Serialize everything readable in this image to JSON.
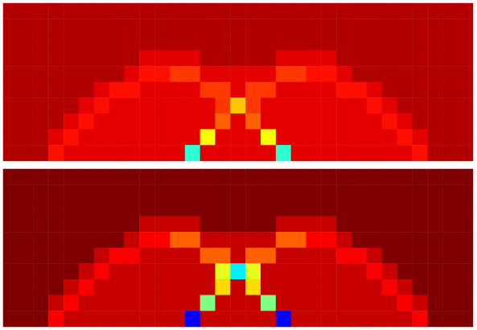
{
  "chart_data": [
    {
      "type": "heatmap",
      "tick_labels": false,
      "zlim": [
        0,
        1
      ],
      "z": [
        [
          0.95,
          0.95,
          0.95,
          0.95,
          0.95,
          0.95,
          0.95,
          0.95,
          0.95,
          0.95,
          0.95,
          0.95,
          0.95,
          0.95,
          0.95,
          0.95,
          0.95,
          0.95,
          0.95,
          0.95,
          0.95,
          0.95,
          0.95,
          0.95,
          0.95,
          0.95,
          0.95,
          0.95,
          0.95,
          0.95,
          0.95
        ],
        [
          0.95,
          0.95,
          0.95,
          0.95,
          0.95,
          0.95,
          0.95,
          0.95,
          0.95,
          0.95,
          0.95,
          0.95,
          0.95,
          0.95,
          0.95,
          0.95,
          0.95,
          0.95,
          0.95,
          0.95,
          0.95,
          0.95,
          0.95,
          0.95,
          0.95,
          0.95,
          0.95,
          0.95,
          0.95,
          0.95,
          0.95
        ],
        [
          0.95,
          0.95,
          0.95,
          0.95,
          0.95,
          0.95,
          0.95,
          0.95,
          0.95,
          0.95,
          0.95,
          0.95,
          0.95,
          0.95,
          0.95,
          0.95,
          0.95,
          0.95,
          0.95,
          0.95,
          0.95,
          0.95,
          0.95,
          0.95,
          0.95,
          0.95,
          0.95,
          0.95,
          0.95,
          0.95,
          0.95
        ],
        [
          0.95,
          0.95,
          0.95,
          0.95,
          0.95,
          0.95,
          0.95,
          0.95,
          0.95,
          0.9,
          0.9,
          0.9,
          0.9,
          0.95,
          0.95,
          0.95,
          0.95,
          0.95,
          0.9,
          0.9,
          0.9,
          0.9,
          0.95,
          0.95,
          0.95,
          0.95,
          0.95,
          0.95,
          0.95,
          0.95,
          0.95
        ],
        [
          0.95,
          0.95,
          0.95,
          0.95,
          0.95,
          0.95,
          0.95,
          0.95,
          0.9,
          0.86,
          0.86,
          0.82,
          0.82,
          0.9,
          0.9,
          0.9,
          0.9,
          0.9,
          0.82,
          0.82,
          0.86,
          0.86,
          0.9,
          0.95,
          0.95,
          0.95,
          0.95,
          0.95,
          0.95,
          0.95,
          0.95
        ],
        [
          0.95,
          0.95,
          0.95,
          0.95,
          0.95,
          0.95,
          0.9,
          0.86,
          0.86,
          0.9,
          0.9,
          0.9,
          0.9,
          0.82,
          0.82,
          0.9,
          0.82,
          0.82,
          0.9,
          0.9,
          0.9,
          0.9,
          0.86,
          0.86,
          0.9,
          0.95,
          0.95,
          0.95,
          0.95,
          0.95,
          0.95
        ],
        [
          0.95,
          0.95,
          0.95,
          0.95,
          0.95,
          0.9,
          0.86,
          0.9,
          0.9,
          0.9,
          0.9,
          0.9,
          0.9,
          0.9,
          0.82,
          0.68,
          0.82,
          0.9,
          0.9,
          0.9,
          0.9,
          0.9,
          0.9,
          0.9,
          0.86,
          0.9,
          0.95,
          0.95,
          0.95,
          0.95,
          0.95
        ],
        [
          0.95,
          0.95,
          0.95,
          0.95,
          0.9,
          0.86,
          0.9,
          0.9,
          0.9,
          0.9,
          0.9,
          0.9,
          0.9,
          0.9,
          0.78,
          0.9,
          0.78,
          0.9,
          0.9,
          0.9,
          0.9,
          0.9,
          0.9,
          0.9,
          0.9,
          0.86,
          0.9,
          0.95,
          0.95,
          0.95,
          0.95
        ],
        [
          0.95,
          0.95,
          0.95,
          0.9,
          0.86,
          0.9,
          0.9,
          0.9,
          0.9,
          0.9,
          0.9,
          0.9,
          0.9,
          0.62,
          0.9,
          0.9,
          0.9,
          0.62,
          0.9,
          0.9,
          0.9,
          0.9,
          0.9,
          0.9,
          0.9,
          0.9,
          0.86,
          0.9,
          0.95,
          0.95,
          0.95
        ],
        [
          0.95,
          0.95,
          0.95,
          0.86,
          0.9,
          0.9,
          0.9,
          0.9,
          0.9,
          0.9,
          0.9,
          0.9,
          0.42,
          0.9,
          0.9,
          0.9,
          0.9,
          0.9,
          0.42,
          0.9,
          0.9,
          0.9,
          0.9,
          0.9,
          0.9,
          0.9,
          0.9,
          0.86,
          0.95,
          0.95,
          0.95
        ]
      ]
    },
    {
      "type": "heatmap",
      "tick_labels": false,
      "zlim": [
        0,
        1
      ],
      "z": [
        [
          1,
          1,
          1,
          1,
          1,
          1,
          1,
          1,
          1,
          1,
          1,
          1,
          1,
          1,
          1,
          1,
          1,
          1,
          1,
          1,
          1,
          1,
          1,
          1,
          1,
          1,
          1,
          1,
          1,
          1,
          1
        ],
        [
          1,
          1,
          1,
          1,
          1,
          1,
          1,
          1,
          1,
          1,
          1,
          1,
          1,
          1,
          1,
          1,
          1,
          1,
          1,
          1,
          1,
          1,
          1,
          1,
          1,
          1,
          1,
          1,
          1,
          1,
          1
        ],
        [
          1,
          1,
          1,
          1,
          1,
          1,
          1,
          1,
          1,
          1,
          1,
          1,
          1,
          1,
          1,
          1,
          1,
          1,
          1,
          1,
          1,
          1,
          1,
          1,
          1,
          1,
          1,
          1,
          1,
          1,
          1
        ],
        [
          1,
          1,
          1,
          1,
          1,
          1,
          1,
          1,
          1,
          0.93,
          0.93,
          0.93,
          0.93,
          1,
          1,
          1,
          1,
          1,
          0.93,
          0.93,
          0.93,
          0.93,
          1,
          1,
          1,
          1,
          1,
          1,
          1,
          1,
          1
        ],
        [
          1,
          1,
          1,
          1,
          1,
          1,
          1,
          1,
          0.93,
          0.88,
          0.88,
          0.78,
          0.78,
          0.93,
          0.93,
          0.93,
          0.93,
          0.93,
          0.78,
          0.78,
          0.88,
          0.88,
          0.93,
          1,
          1,
          1,
          1,
          1,
          1,
          1,
          1
        ],
        [
          1,
          1,
          1,
          1,
          1,
          1,
          0.93,
          0.88,
          0.88,
          0.93,
          0.93,
          0.93,
          0.93,
          0.78,
          0.78,
          0.93,
          0.78,
          0.78,
          0.93,
          0.93,
          0.93,
          0.93,
          0.88,
          0.88,
          0.93,
          1,
          1,
          1,
          1,
          1,
          1
        ],
        [
          1,
          1,
          1,
          1,
          1,
          0.93,
          0.88,
          0.93,
          0.93,
          0.93,
          0.93,
          0.93,
          0.93,
          0.93,
          0.6,
          0.36,
          0.6,
          0.93,
          0.93,
          0.93,
          0.93,
          0.93,
          0.93,
          0.93,
          0.88,
          0.93,
          1,
          1,
          1,
          1,
          1
        ],
        [
          1,
          1,
          1,
          1,
          0.93,
          0.88,
          0.93,
          0.93,
          0.93,
          0.93,
          0.93,
          0.93,
          0.93,
          0.93,
          0.66,
          0.93,
          0.66,
          0.93,
          0.93,
          0.93,
          0.93,
          0.93,
          0.93,
          0.93,
          0.93,
          0.88,
          0.93,
          1,
          1,
          1,
          1
        ],
        [
          1,
          1,
          1,
          0.93,
          0.88,
          0.93,
          0.93,
          0.93,
          0.93,
          0.93,
          0.93,
          0.93,
          0.93,
          0.5,
          0.93,
          0.93,
          0.93,
          0.5,
          0.93,
          0.93,
          0.93,
          0.93,
          0.93,
          0.93,
          0.93,
          0.93,
          0.88,
          0.93,
          1,
          1,
          1
        ],
        [
          1,
          1,
          1,
          0.88,
          0.93,
          0.93,
          0.93,
          0.93,
          0.93,
          0.93,
          0.93,
          0.93,
          0.12,
          0.93,
          0.93,
          0.93,
          0.93,
          0.93,
          0.12,
          0.93,
          0.93,
          0.93,
          0.93,
          0.93,
          0.93,
          0.93,
          0.93,
          0.88,
          1,
          1,
          1
        ]
      ]
    }
  ]
}
